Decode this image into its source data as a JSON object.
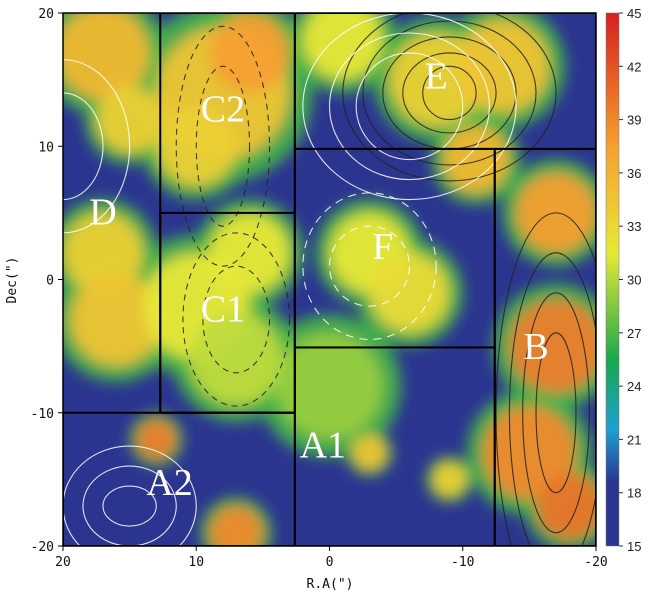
{
  "chart_data": {
    "type": "heatmap",
    "title": "",
    "xlabel": "R.A(\")",
    "ylabel": "Dec(\")",
    "xlim": [
      20,
      -20
    ],
    "ylim": [
      -20,
      20
    ],
    "x_ticks": [
      {
        "value": 20,
        "label": "20"
      },
      {
        "value": 10,
        "label": "10"
      },
      {
        "value": 0,
        "label": "0"
      },
      {
        "value": -10,
        "label": "-10"
      },
      {
        "value": -20,
        "label": "-20"
      }
    ],
    "y_ticks": [
      {
        "value": 20,
        "label": "20"
      },
      {
        "value": 10,
        "label": "10"
      },
      {
        "value": 0,
        "label": "0"
      },
      {
        "value": -10,
        "label": "-10"
      },
      {
        "value": -20,
        "label": "-20"
      }
    ],
    "colorbar": {
      "min": 15,
      "max": 45,
      "ticks": [
        "45",
        "42",
        "39",
        "36",
        "33",
        "30",
        "27",
        "24",
        "21",
        "18",
        "15"
      ],
      "colors": [
        "#2b3590",
        "#1f9fd0",
        "#1aa84c",
        "#e8e838",
        "#f5a030",
        "#d62020"
      ]
    },
    "regions": [
      {
        "label": "A1",
        "x": 0.5,
        "y": -12.7
      },
      {
        "label": "A2",
        "x": 12.0,
        "y": -15.5
      },
      {
        "label": "B",
        "x": -15.5,
        "y": -5.3
      },
      {
        "label": "C1",
        "x": 8.0,
        "y": -2.5
      },
      {
        "label": "C2",
        "x": 8.0,
        "y": 12.5
      },
      {
        "label": "D",
        "x": 17.0,
        "y": 4.8
      },
      {
        "label": "E",
        "x": -8.0,
        "y": 15.0
      },
      {
        "label": "F",
        "x": -4.0,
        "y": 2.2
      }
    ],
    "boxes": [
      {
        "x1": 12.7,
        "y1": 20,
        "x2": 2.6,
        "y2": -10
      },
      {
        "x1": 12.7,
        "y1": 5,
        "x2": 2.6,
        "y2": -10
      },
      {
        "x1": 20,
        "y1": -10,
        "x2": 2.6,
        "y2": -20
      },
      {
        "x1": 2.6,
        "y1": -5.1,
        "x2": -12.4,
        "y2": -20
      },
      {
        "x1": 2.6,
        "y1": 9.8,
        "x2": -12.4,
        "y2": -5.1
      },
      {
        "x1": -12.4,
        "y1": 9.8,
        "x2": -20,
        "y2": -20
      },
      {
        "x1": 2.6,
        "y1": 20,
        "x2": -20,
        "y2": 9.8
      }
    ],
    "intensity_blobs": [
      {
        "x": 8,
        "y": 14,
        "r": 5,
        "v": 30
      },
      {
        "x": 6,
        "y": 17,
        "r": 3,
        "v": 33
      },
      {
        "x": 10,
        "y": 10,
        "r": 3,
        "v": 29
      },
      {
        "x": 17,
        "y": 17,
        "r": 3.5,
        "v": 31
      },
      {
        "x": 15,
        "y": 12,
        "r": 2.5,
        "v": 29
      },
      {
        "x": 17,
        "y": 2,
        "r": 3,
        "v": 29
      },
      {
        "x": 16,
        "y": -3,
        "r": 3.5,
        "v": 30
      },
      {
        "x": 10,
        "y": -2,
        "r": 4,
        "v": 27
      },
      {
        "x": 7,
        "y": -6,
        "r": 3.5,
        "v": 26
      },
      {
        "x": 6,
        "y": 2,
        "r": 3,
        "v": 27
      },
      {
        "x": 0,
        "y": -8,
        "r": 4,
        "v": 25
      },
      {
        "x": -3,
        "y": 2,
        "r": 3,
        "v": 27
      },
      {
        "x": -6,
        "y": -1,
        "r": 3,
        "v": 28
      },
      {
        "x": -8,
        "y": 15,
        "r": 3.5,
        "v": 29
      },
      {
        "x": -1,
        "y": 18,
        "r": 3,
        "v": 27
      },
      {
        "x": -13,
        "y": 16,
        "r": 3.5,
        "v": 30
      },
      {
        "x": -11,
        "y": 9,
        "r": 2.5,
        "v": 31
      },
      {
        "x": -17,
        "y": 5,
        "r": 3,
        "v": 33
      },
      {
        "x": -17,
        "y": -5,
        "r": 3.5,
        "v": 36
      },
      {
        "x": -15,
        "y": -13,
        "r": 3.5,
        "v": 35
      },
      {
        "x": -18,
        "y": -17,
        "r": 2.5,
        "v": 37
      },
      {
        "x": 13,
        "y": -12,
        "r": 1.5,
        "v": 36
      },
      {
        "x": 7,
        "y": -19,
        "r": 2,
        "v": 35
      },
      {
        "x": -3,
        "y": -13,
        "r": 1.3,
        "v": 30
      },
      {
        "x": -9,
        "y": -15,
        "r": 1.3,
        "v": 29
      }
    ]
  }
}
